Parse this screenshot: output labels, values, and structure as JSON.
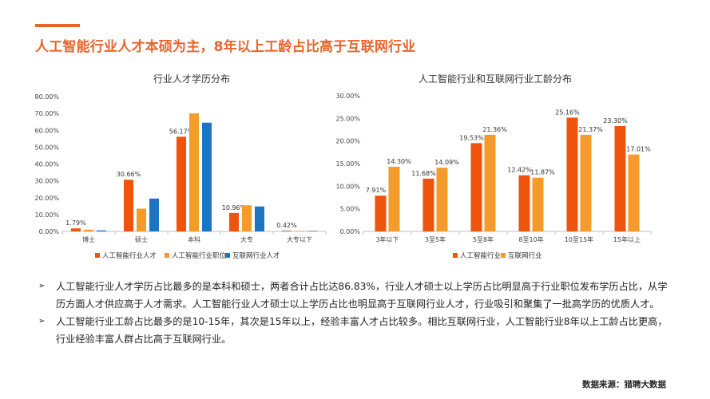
{
  "page_title": "人工智能行业人才本硕为主，8年以上工龄占比高于互联网行业",
  "colors": {
    "accent": "#e8642c",
    "s1": "#f0530c",
    "s2": "#f59b2a",
    "s3": "#1c74c4",
    "axis": "#bfbfbf"
  },
  "chart_data": [
    {
      "type": "bar",
      "title": "行业人才学历分布",
      "categories": [
        "博士",
        "硕士",
        "本科",
        "大专",
        "大专以下"
      ],
      "ylim": [
        0,
        80
      ],
      "yticks": [
        "0.00%",
        "10.00%",
        "20.00%",
        "30.00%",
        "40.00%",
        "50.00%",
        "60.00%",
        "70.00%",
        "80.00%"
      ],
      "series": [
        {
          "name": "人工智能行业人才",
          "values": [
            1.79,
            30.66,
            56.17,
            10.96,
            0.42
          ],
          "labels": [
            "1.79%",
            "30.66%",
            "56.17%",
            "10.96%",
            "0.42%"
          ]
        },
        {
          "name": "人工智能行业职位",
          "values": [
            1.0,
            13.5,
            70.0,
            15.5,
            0.3
          ]
        },
        {
          "name": "互联网行业人才",
          "values": [
            0.6,
            19.5,
            64.5,
            14.8,
            0.3
          ]
        }
      ],
      "legend": "bottom"
    },
    {
      "type": "bar",
      "title": "人工智能行业和互联网行业工龄分布",
      "categories": [
        "3年以下",
        "3至5年",
        "5至8年",
        "8至10年",
        "10至15年",
        "15年以上"
      ],
      "ylim": [
        0,
        30
      ],
      "yticks": [
        "0.00%",
        "5.00%",
        "10.00%",
        "15.00%",
        "20.00%",
        "25.00%",
        "30.00%"
      ],
      "series": [
        {
          "name": "人工智能行业",
          "values": [
            7.91,
            11.68,
            19.53,
            12.42,
            25.16,
            23.3
          ],
          "labels": [
            "7.91%",
            "11.68%",
            "19.53%",
            "12.42%",
            "25.16%",
            "23.30%"
          ]
        },
        {
          "name": "互联网行业",
          "values": [
            14.3,
            14.09,
            21.36,
            11.87,
            21.37,
            17.01
          ],
          "labels": [
            "14.30%",
            "14.09%",
            "21.36%",
            "11.87%",
            "21.37%",
            "17.01%"
          ]
        }
      ],
      "legend": "bottom"
    }
  ],
  "bullets": [
    "人工智能行业人才学历占比最多的是本科和硕士，两者合计占比达86.83%，行业人才硕士以上学历占比明显高于行业职位发布学历占比，从学历方面人才供应高于人才需求。人工智能行业人才硕士以上学历占比也明显高于互联网行业人才，行业吸引和聚集了一批高学历的优质人才。",
    "人工智能行业工龄占比最多的是10-15年，其次是15年以上，经验丰富人才占比较多。相比互联网行业，人工智能行业8年以上工龄占比更高，行业经验丰富人群占比高于互联网行业。"
  ],
  "bullet_marker": "➢",
  "source": "数据来源：猎聘大数据"
}
